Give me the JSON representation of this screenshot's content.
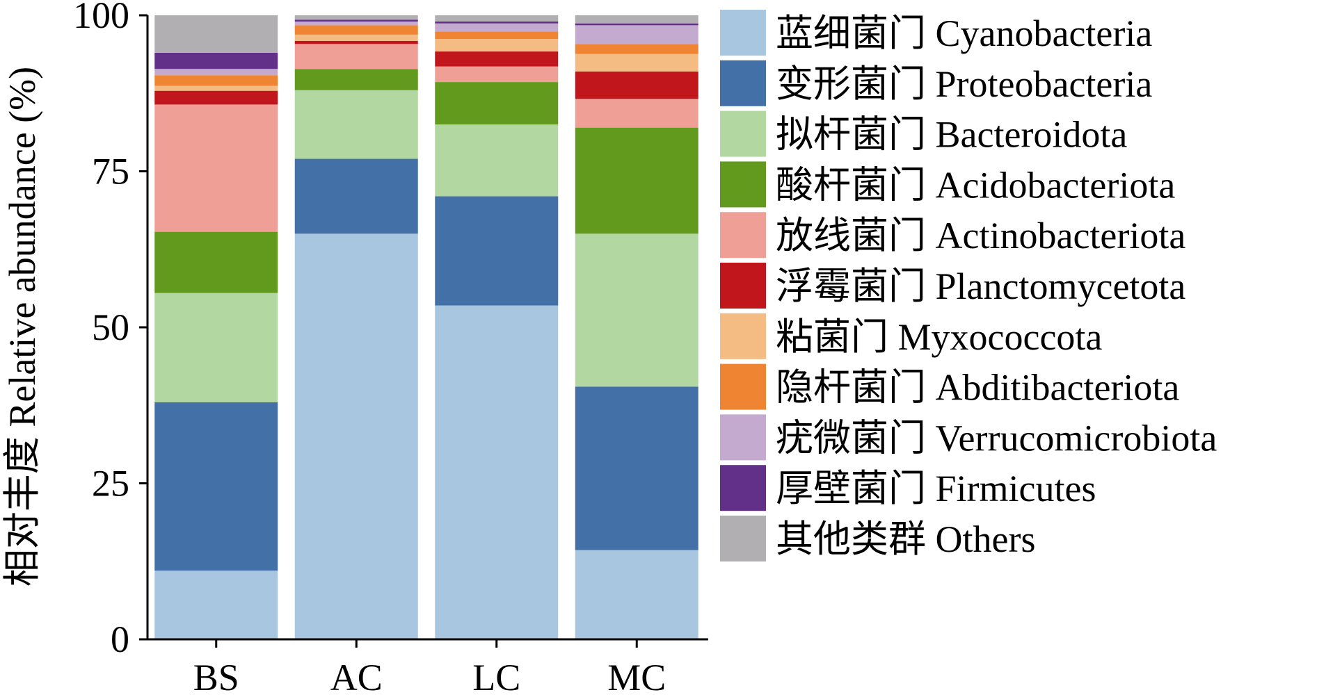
{
  "chart_data": {
    "type": "bar",
    "stacked": true,
    "ylabel": "相对丰度 Relative abundance (%)",
    "xlabel": "",
    "ylim": [
      0,
      100
    ],
    "yticks": [
      "0",
      "25",
      "50",
      "75",
      "100"
    ],
    "ytick_values": [
      0,
      25,
      50,
      75,
      100
    ],
    "categories": [
      "BS",
      "AC",
      "LC",
      "MC"
    ],
    "legend_position": "right",
    "series": [
      {
        "name": "蓝细菌门 Cyanobacteria",
        "color": "#a9c6e0",
        "values": [
          11.0,
          65.0,
          53.5,
          14.3
        ]
      },
      {
        "name": "变形菌门 Proteobacteria",
        "color": "#4470a8",
        "values": [
          27.0,
          12.0,
          17.5,
          26.2
        ]
      },
      {
        "name": "拟杆菌门 Bacteroidota",
        "color": "#b3d7a0",
        "values": [
          17.5,
          11.0,
          11.5,
          24.5
        ]
      },
      {
        "name": "酸杆菌门 Acidobacteriota",
        "color": "#619a1c",
        "values": [
          9.8,
          3.4,
          6.8,
          17.0
        ]
      },
      {
        "name": "放线菌门 Actinobacteriota",
        "color": "#f09f97",
        "values": [
          20.4,
          4.0,
          2.5,
          4.6
        ]
      },
      {
        "name": "浮霉菌门 Planctomycetota",
        "color": "#c1161c",
        "values": [
          2.2,
          0.5,
          2.4,
          4.4
        ]
      },
      {
        "name": "粘菌门 Myxococcota",
        "color": "#f4bb82",
        "values": [
          0.8,
          1.0,
          2.0,
          2.8
        ]
      },
      {
        "name": "隐杆菌门 Abditibacteriota",
        "color": "#ef8532",
        "values": [
          1.7,
          1.5,
          1.2,
          1.6
        ]
      },
      {
        "name": "疣微菌门 Verrucomicrobiota",
        "color": "#c3aace",
        "values": [
          1.0,
          0.6,
          1.3,
          3.0
        ]
      },
      {
        "name": "厚壁菌门 Firmicutes",
        "color": "#623088",
        "values": [
          2.6,
          0.3,
          0.3,
          0.3
        ]
      },
      {
        "name": "其他类群 Others",
        "color": "#b1afb2",
        "values": [
          6.0,
          0.7,
          1.0,
          1.3
        ]
      }
    ]
  }
}
